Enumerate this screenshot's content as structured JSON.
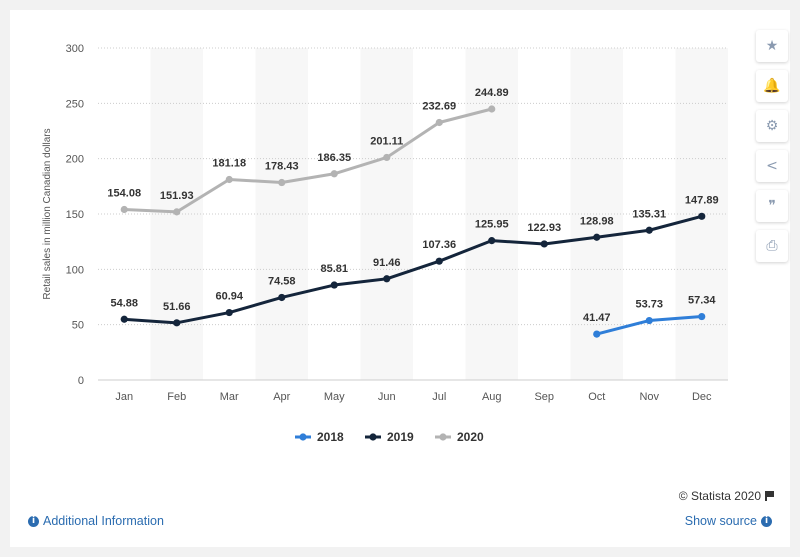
{
  "chart_data": {
    "type": "line",
    "categories": [
      "Jan",
      "Feb",
      "Mar",
      "Apr",
      "May",
      "Jun",
      "Jul",
      "Aug",
      "Sep",
      "Oct",
      "Nov",
      "Dec"
    ],
    "ylabel": "Retail sales in million Canadian dollars",
    "ylim": [
      0,
      300
    ],
    "yticks": [
      0,
      50,
      100,
      150,
      200,
      250,
      300
    ],
    "grid": true,
    "legend_position": "bottom",
    "series": [
      {
        "name": "2018",
        "color": "#2f7ed8",
        "values": [
          null,
          null,
          null,
          null,
          null,
          null,
          null,
          null,
          null,
          41.47,
          53.73,
          57.34
        ],
        "labels": [
          "",
          "",
          "",
          "",
          "",
          "",
          "",
          "",
          "",
          "41.47",
          "53.73",
          "57.34"
        ]
      },
      {
        "name": "2019",
        "color": "#14253b",
        "values": [
          54.88,
          51.66,
          60.94,
          74.58,
          85.81,
          91.46,
          107.36,
          125.95,
          122.93,
          128.98,
          135.31,
          147.89
        ],
        "labels": [
          "54.88",
          "51.66",
          "60.94",
          "74.58",
          "85.81",
          "91.46",
          "107.36",
          "125.95",
          "122.93",
          "128.98",
          "135.31",
          "147.89"
        ]
      },
      {
        "name": "2020",
        "color": "#b3b3b3",
        "values": [
          154.08,
          151.93,
          181.18,
          178.43,
          186.35,
          201.11,
          232.69,
          244.89,
          null,
          null,
          null,
          null
        ],
        "labels": [
          "154.08",
          "151.93",
          "181.18",
          "178.43",
          "186.35",
          "201.11",
          "232.69",
          "244.89",
          "",
          "",
          "",
          ""
        ]
      }
    ]
  },
  "footer": {
    "additional_info": "Additional Information",
    "show_source": "Show source",
    "credit": "© Statista 2020"
  },
  "tools": [
    {
      "icon": "star-icon",
      "glyph": "★"
    },
    {
      "icon": "bell-icon",
      "glyph": "🔔"
    },
    {
      "icon": "gear-icon",
      "glyph": "⚙"
    },
    {
      "icon": "share-icon",
      "glyph": "<"
    },
    {
      "icon": "quote-icon",
      "glyph": "❞"
    },
    {
      "icon": "print-icon",
      "glyph": "⎙"
    }
  ]
}
